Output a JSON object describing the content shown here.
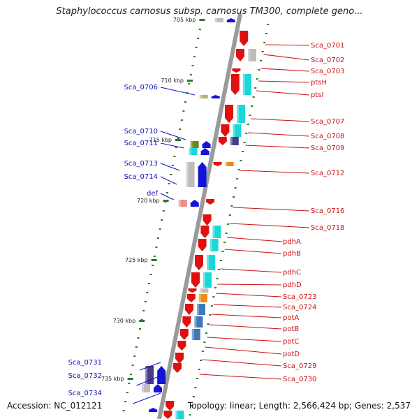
{
  "title": "Staphylococcus carnosus subsp. carnosus TM300, complete geno...",
  "footer": {
    "accession": "Accession: NC_012121",
    "topology": "Topology: linear; Length: 2,566,424 bp; Genes: 2,537"
  },
  "colors": {
    "forward_strand_label": "#1010c0",
    "reverse_strand_label": "#cc1010",
    "backbone": "#9a9a9a",
    "tick": "#2a7a2a",
    "cds_forward": "#1414d8",
    "cds_reverse": "#e01010",
    "cog_cyan": "#18d8d8",
    "cog_gray": "#bcbcbc",
    "cog_purple": "#4a3a8a",
    "cog_olive": "#6a8a20",
    "cog_orange": "#f08a10",
    "cog_pink": "#f08a8a",
    "cog_tan": "#bfb070",
    "cog_steelblue": "#3c78b8"
  },
  "kbp_ticks": [
    "705 kbp",
    "710 kbp",
    "715 kbp",
    "720 kbp",
    "725 kbp",
    "730 kbp",
    "735 kbp"
  ],
  "left_labels": [
    "Sca_0706",
    "Sca_0710",
    "Sca_0711",
    "Sca_0713",
    "Sca_0714",
    "def",
    "Sca_0731",
    "Sca_0732",
    "Sca_0734"
  ],
  "right_labels": [
    "Sca_0701",
    "Sca_0702",
    "Sca_0703",
    "ptsH",
    "ptsI",
    "Sca_0707",
    "Sca_0708",
    "Sca_0709",
    "Sca_0712",
    "Sca_0716",
    "Sca_0718",
    "pdhA",
    "pdhB",
    "pdhC",
    "pdhD",
    "Sca_0723",
    "Sca_0724",
    "potA",
    "potB",
    "potC",
    "potD",
    "Sca_0729",
    "Sca_0730"
  ]
}
